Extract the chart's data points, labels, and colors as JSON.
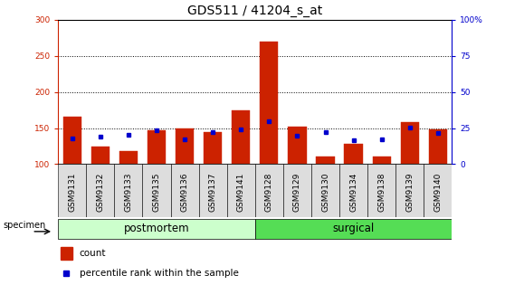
{
  "title": "GDS511 / 41204_s_at",
  "samples": [
    "GSM9131",
    "GSM9132",
    "GSM9133",
    "GSM9135",
    "GSM9136",
    "GSM9137",
    "GSM9141",
    "GSM9128",
    "GSM9129",
    "GSM9130",
    "GSM9134",
    "GSM9138",
    "GSM9139",
    "GSM9140"
  ],
  "count_values": [
    166,
    124,
    118,
    147,
    150,
    145,
    175,
    270,
    152,
    110,
    128,
    111,
    158,
    148
  ],
  "percentile_values": [
    136,
    138,
    141,
    147,
    135,
    144,
    148,
    160,
    140,
    144,
    133,
    134,
    151,
    143
  ],
  "bar_bottom": 100,
  "y_min": 100,
  "y_max": 300,
  "y_ticks": [
    100,
    150,
    200,
    250,
    300
  ],
  "y_tick_labels": [
    "100",
    "150",
    "200",
    "250",
    "300"
  ],
  "right_y_ticks": [
    0,
    25,
    50,
    75,
    100
  ],
  "right_y_tick_labels": [
    "0",
    "25",
    "50",
    "75",
    "100%"
  ],
  "count_color": "#cc2200",
  "percentile_color": "#0000cc",
  "groups": [
    {
      "label": "postmortem",
      "start": 0,
      "end": 7,
      "color": "#ccffcc"
    },
    {
      "label": "surgical",
      "start": 7,
      "end": 14,
      "color": "#55dd55"
    }
  ],
  "specimen_label": "specimen",
  "legend_count_label": "count",
  "legend_percentile_label": "percentile rank within the sample",
  "axis_color_left": "#cc2200",
  "axis_color_right": "#0000cc",
  "title_fontsize": 10,
  "tick_fontsize": 6.5,
  "group_label_fontsize": 8.5,
  "legend_fontsize": 7.5
}
